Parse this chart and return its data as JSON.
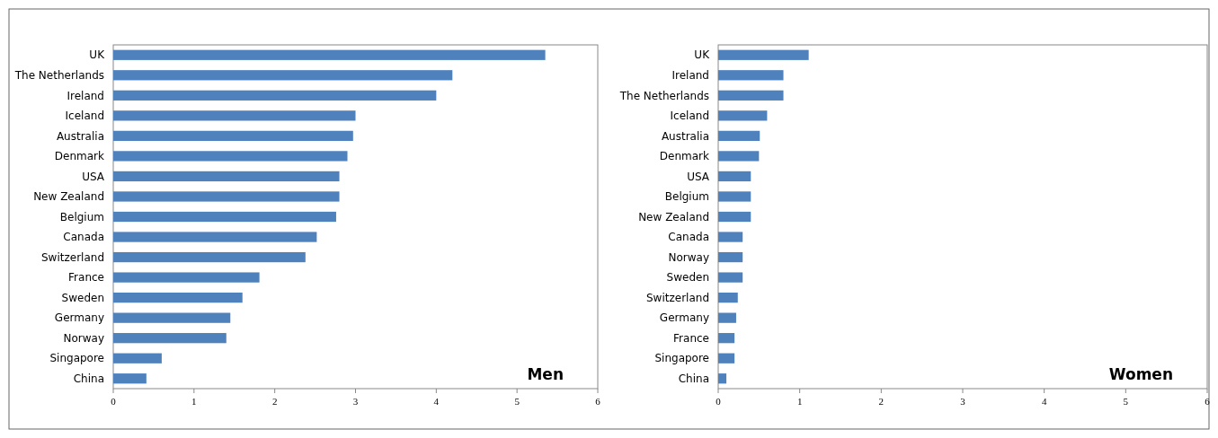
{
  "chart_data": [
    {
      "type": "bar",
      "orientation": "horizontal",
      "categories": [
        "UK",
        "The Netherlands",
        "Ireland",
        "Iceland",
        "Australia",
        "Denmark",
        "USA",
        "New Zealand",
        "Belgium",
        "Canada",
        "Switzerland",
        "France",
        "Sweden",
        "Germany",
        "Norway",
        "Singapore",
        "China"
      ],
      "values": [
        5.35,
        4.2,
        4.0,
        3.0,
        2.97,
        2.9,
        2.8,
        2.8,
        2.76,
        2.52,
        2.38,
        1.81,
        1.6,
        1.45,
        1.4,
        0.6,
        0.41
      ],
      "color": "#4f81bd",
      "xlim": [
        0,
        6
      ],
      "xticks": [
        0,
        1,
        2,
        3,
        4,
        5,
        6
      ],
      "grid": false,
      "annotations": [
        "Men"
      ]
    },
    {
      "type": "bar",
      "orientation": "horizontal",
      "categories": [
        "UK",
        "Ireland",
        "The Netherlands",
        "Iceland",
        "Australia",
        "Denmark",
        "USA",
        "Belgium",
        "New Zealand",
        "Canada",
        "Norway",
        "Sweden",
        "Switzerland",
        "Germany",
        "France",
        "Singapore",
        "China"
      ],
      "values": [
        1.11,
        0.8,
        0.8,
        0.6,
        0.51,
        0.5,
        0.4,
        0.4,
        0.4,
        0.3,
        0.3,
        0.3,
        0.24,
        0.22,
        0.2,
        0.2,
        0.1
      ],
      "color": "#4f81bd",
      "xlim": [
        0,
        6
      ],
      "xticks": [
        0,
        1,
        2,
        3,
        4,
        5,
        6
      ],
      "grid": false,
      "annotations": [
        "Women"
      ]
    }
  ]
}
